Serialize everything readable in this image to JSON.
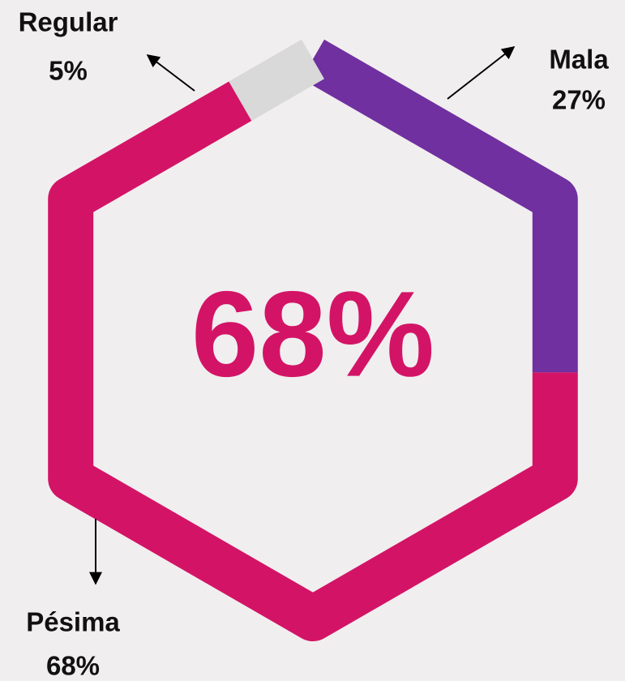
{
  "chart_data": {
    "type": "donut",
    "categories": [
      "Mala",
      "Pésima",
      "Regular"
    ],
    "values": [
      27,
      68,
      5
    ],
    "value_labels": [
      "27%",
      "68%",
      "5%"
    ],
    "colors": [
      "#7030a0",
      "#d31466",
      "#d9d9d9"
    ],
    "center_label": "68%"
  }
}
